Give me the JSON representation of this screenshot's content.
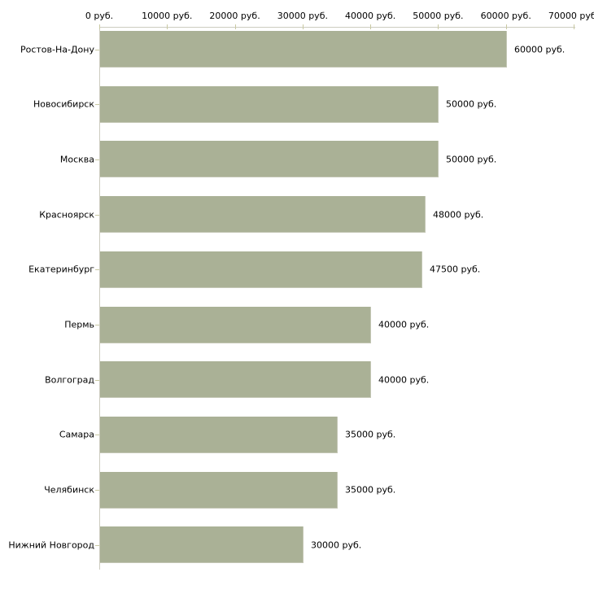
{
  "chart_data": {
    "type": "bar",
    "orientation": "horizontal",
    "title": "",
    "categories": [
      "Ростов-На-Дону",
      "Новосибирск",
      "Москва",
      "Красноярск",
      "Екатеринбург",
      "Пермь",
      "Волгоград",
      "Самара",
      "Челябинск",
      "Нижний Новгород"
    ],
    "values": [
      60000,
      50000,
      50000,
      48000,
      47500,
      40000,
      40000,
      35000,
      35000,
      30000
    ],
    "value_labels": [
      "60000 руб.",
      "50000 руб.",
      "50000 руб.",
      "48000 руб.",
      "47500 руб.",
      "40000 руб.",
      "40000 руб.",
      "35000 руб.",
      "35000 руб.",
      "30000 руб."
    ],
    "x_axis": {
      "position": "top",
      "tick_values": [
        0,
        10000,
        20000,
        30000,
        40000,
        50000,
        60000,
        70000
      ],
      "tick_labels": [
        "0 руб.",
        "10000 руб.",
        "20000 руб.",
        "30000 руб.",
        "40000 руб.",
        "50000 руб.",
        "60000 руб.",
        "70000 руб."
      ],
      "range": [
        0,
        70000
      ]
    },
    "ylabel": "",
    "xlabel": "",
    "grid": false,
    "legend": false,
    "colors": {
      "bar": "#aab196",
      "bar_border": "#c3c6b4",
      "axis_line": "#cdccc0",
      "tick": "#c9c9a3",
      "text": "#000000",
      "background": "#ffffff"
    }
  }
}
